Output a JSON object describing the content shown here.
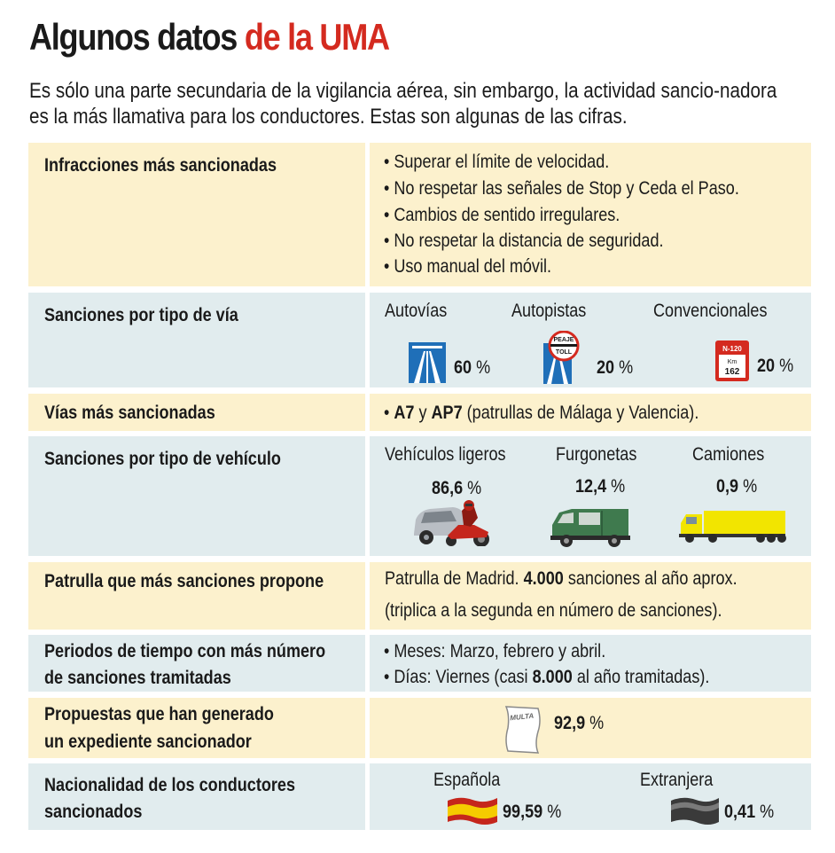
{
  "title": {
    "main": "Algunos datos ",
    "accent": "de la UMA"
  },
  "intro": "Es sólo una parte secundaria de la vigilancia aérea, sin embargo, la actividad sancio-nadora es la más llamativa para los conductores. Estas son algunas de las cifras.",
  "rows": {
    "infracciones": {
      "label": "Infracciones más sancionadas",
      "items": [
        "• Superar el límite de velocidad.",
        "• No respetar las señales de Stop y Ceda el Paso.",
        "• Cambios de sentido irregulares.",
        "• No respetar la distancia de seguridad.",
        "• Uso manual del móvil."
      ]
    },
    "tipo_via": {
      "label": "Sanciones por tipo de vía",
      "autovias": {
        "name": "Autovías",
        "value": "60",
        "unit": " %"
      },
      "autopistas": {
        "name": "Autopistas",
        "value": "20",
        "unit": " %",
        "sign_top": "PEAJE",
        "sign_bottom": "TOLL"
      },
      "convencionales": {
        "name": "Convencionales",
        "value": "20",
        "unit": " %",
        "sign_road": "N-120",
        "sign_km": "Km",
        "sign_num": "162"
      }
    },
    "vias": {
      "label": "Vías más sancionadas",
      "bullet": "• ",
      "a7": "A7",
      "y": " y ",
      "ap7": "AP7",
      "rest": " (patrullas de Málaga y Valencia)."
    },
    "tipo_vehiculo": {
      "label": "Sanciones por tipo de vehículo",
      "ligeros": {
        "name": "Vehículos ligeros",
        "value": "86,6",
        "unit": " %"
      },
      "furgonetas": {
        "name": "Furgonetas",
        "value": "12,4",
        "unit": " %"
      },
      "camiones": {
        "name": "Camiones",
        "value": "0,9",
        "unit": " %"
      }
    },
    "patrulla": {
      "label": "Patrulla que más sanciones propone",
      "line1_pre": "Patrulla de Madrid. ",
      "line1_bold": "4.000",
      "line1_post": " sanciones al año aprox.",
      "line2": "(triplica a la segunda en número de sanciones)."
    },
    "periodos": {
      "label_line1": "Periodos de tiempo con más número",
      "label_line2": "de sanciones tramitadas",
      "meses": "• Meses: Marzo, febrero y abril.",
      "dias_pre": "• Días: Viernes (casi ",
      "dias_bold": "8.000",
      "dias_post": " al año tramitadas)."
    },
    "propuestas": {
      "label_line1": "Propuestas que han generado",
      "label_line2": " un expediente sancionador",
      "paper_text": "MULTA",
      "value": "92,9",
      "unit": " %"
    },
    "nacionalidad": {
      "label_line1": "Nacionalidad de los conductores",
      "label_line2": "sancionados",
      "espanola": {
        "name": "Española",
        "value": "99,59",
        "unit": " %"
      },
      "extranjera": {
        "name": "Extranjera",
        "value": "0,41",
        "unit": " %"
      }
    }
  },
  "colors": {
    "accent": "#d42a1f",
    "yellow_bg": "#fcf1cd",
    "blue_bg": "#e1ecee",
    "highway_blue": "#1f6fb8"
  }
}
